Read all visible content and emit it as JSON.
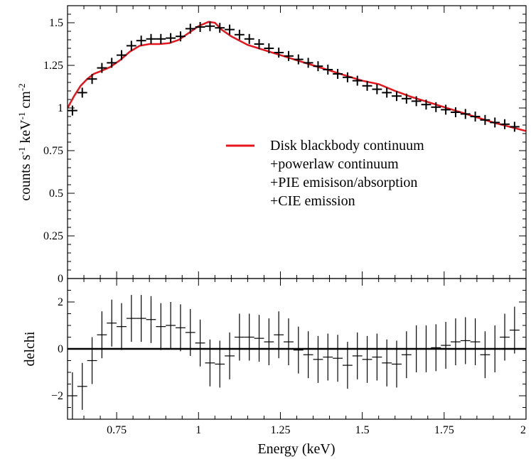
{
  "chart_data": [
    {
      "type": "line",
      "panel": "top",
      "ylabel": "counts s-1 keV-1 cm-2",
      "xlim": [
        0.6,
        2.0
      ],
      "ylim": [
        0,
        1.6
      ],
      "y_ticks": [
        "0",
        "0.25",
        "0.5",
        "0.75",
        "1",
        "1.25",
        "1.5"
      ],
      "legend": {
        "placement": "center-right",
        "lines": [
          "Disk blackbody continuum",
          "+powerlaw continuum",
          "+PIE emisison/absorption",
          "+CIE emission"
        ]
      },
      "series": [
        {
          "kind": "data-crosses",
          "color": "#000000",
          "x": [
            0.615,
            0.645,
            0.675,
            0.705,
            0.735,
            0.765,
            0.795,
            0.825,
            0.855,
            0.885,
            0.915,
            0.945,
            0.975,
            1.005,
            1.035,
            1.065,
            1.095,
            1.125,
            1.155,
            1.185,
            1.215,
            1.245,
            1.275,
            1.305,
            1.335,
            1.365,
            1.395,
            1.425,
            1.455,
            1.485,
            1.515,
            1.545,
            1.575,
            1.605,
            1.635,
            1.665,
            1.695,
            1.725,
            1.755,
            1.785,
            1.815,
            1.845,
            1.875,
            1.905,
            1.935,
            1.965
          ],
          "y": [
            0.985,
            1.09,
            1.17,
            1.235,
            1.265,
            1.31,
            1.365,
            1.395,
            1.405,
            1.405,
            1.41,
            1.42,
            1.465,
            1.475,
            1.48,
            1.47,
            1.46,
            1.43,
            1.405,
            1.375,
            1.35,
            1.325,
            1.305,
            1.285,
            1.265,
            1.245,
            1.225,
            1.2,
            1.18,
            1.16,
            1.13,
            1.11,
            1.09,
            1.07,
            1.055,
            1.04,
            1.02,
            1.005,
            0.99,
            0.975,
            0.965,
            0.95,
            0.93,
            0.915,
            0.905,
            0.89
          ]
        },
        {
          "kind": "model-line",
          "name": "Disk blackbody continuum",
          "color": "#e8141b",
          "x": [
            0.6,
            0.62,
            0.64,
            0.66,
            0.68,
            0.7,
            0.73,
            0.76,
            0.79,
            0.82,
            0.85,
            0.88,
            0.91,
            0.94,
            0.97,
            1.0,
            1.03,
            1.05,
            1.07,
            1.1,
            1.15,
            1.2,
            1.25,
            1.3,
            1.35,
            1.4,
            1.45,
            1.5,
            1.55,
            1.6,
            1.65,
            1.7,
            1.75,
            1.8,
            1.85,
            1.9,
            1.95,
            2.0
          ],
          "y": [
            1.0,
            1.07,
            1.13,
            1.17,
            1.2,
            1.215,
            1.24,
            1.28,
            1.33,
            1.365,
            1.375,
            1.375,
            1.38,
            1.4,
            1.44,
            1.48,
            1.505,
            1.5,
            1.46,
            1.42,
            1.37,
            1.34,
            1.31,
            1.28,
            1.25,
            1.22,
            1.19,
            1.16,
            1.14,
            1.1,
            1.065,
            1.035,
            1.005,
            0.975,
            0.945,
            0.915,
            0.89,
            0.865
          ]
        }
      ]
    },
    {
      "type": "scatter",
      "panel": "bottom",
      "xlabel": "Energy (keV)",
      "ylabel": "delchi",
      "xlim": [
        0.6,
        2.0
      ],
      "ylim": [
        -3,
        3
      ],
      "x_ticks": [
        "0.75",
        "1",
        "1.25",
        "1.5",
        "1.75",
        "2"
      ],
      "y_ticks": [
        "−2",
        "0",
        "2"
      ],
      "zero_line": 0,
      "series": [
        {
          "kind": "residuals-with-errorbars",
          "color": "#000000",
          "x": [
            0.615,
            0.645,
            0.675,
            0.705,
            0.735,
            0.765,
            0.795,
            0.825,
            0.855,
            0.885,
            0.915,
            0.945,
            0.975,
            1.005,
            1.035,
            1.065,
            1.095,
            1.125,
            1.155,
            1.185,
            1.215,
            1.245,
            1.275,
            1.305,
            1.335,
            1.365,
            1.395,
            1.425,
            1.455,
            1.485,
            1.515,
            1.545,
            1.575,
            1.605,
            1.635,
            1.665,
            1.695,
            1.725,
            1.755,
            1.785,
            1.815,
            1.845,
            1.875,
            1.905,
            1.935,
            1.965
          ],
          "y": [
            -2.0,
            -1.6,
            -0.5,
            0.6,
            1.1,
            0.95,
            1.3,
            1.3,
            1.25,
            0.95,
            1.0,
            0.9,
            0.7,
            0.25,
            -0.6,
            -0.65,
            -0.3,
            0.5,
            0.5,
            0.45,
            0.3,
            0.6,
            0.3,
            -0.05,
            -0.25,
            -0.45,
            -0.35,
            -0.4,
            -0.7,
            -0.3,
            -0.45,
            -0.35,
            -0.6,
            -0.65,
            -0.25,
            0.0,
            0.0,
            0.05,
            0.15,
            0.3,
            0.35,
            0.3,
            -0.25,
            0.0,
            0.5,
            0.8
          ],
          "err": [
            1.0,
            1.0,
            1.0,
            1.0,
            1.0,
            1.0,
            1.0,
            1.0,
            1.0,
            1.0,
            1.0,
            1.0,
            1.0,
            1.0,
            1.0,
            1.0,
            1.0,
            1.0,
            1.0,
            1.0,
            1.0,
            1.0,
            1.0,
            1.0,
            1.0,
            1.0,
            1.0,
            1.0,
            1.0,
            1.0,
            1.0,
            1.0,
            1.0,
            1.0,
            1.0,
            1.0,
            1.0,
            1.0,
            1.0,
            1.0,
            1.0,
            1.0,
            1.0,
            1.0,
            1.0,
            1.0
          ]
        }
      ]
    }
  ]
}
